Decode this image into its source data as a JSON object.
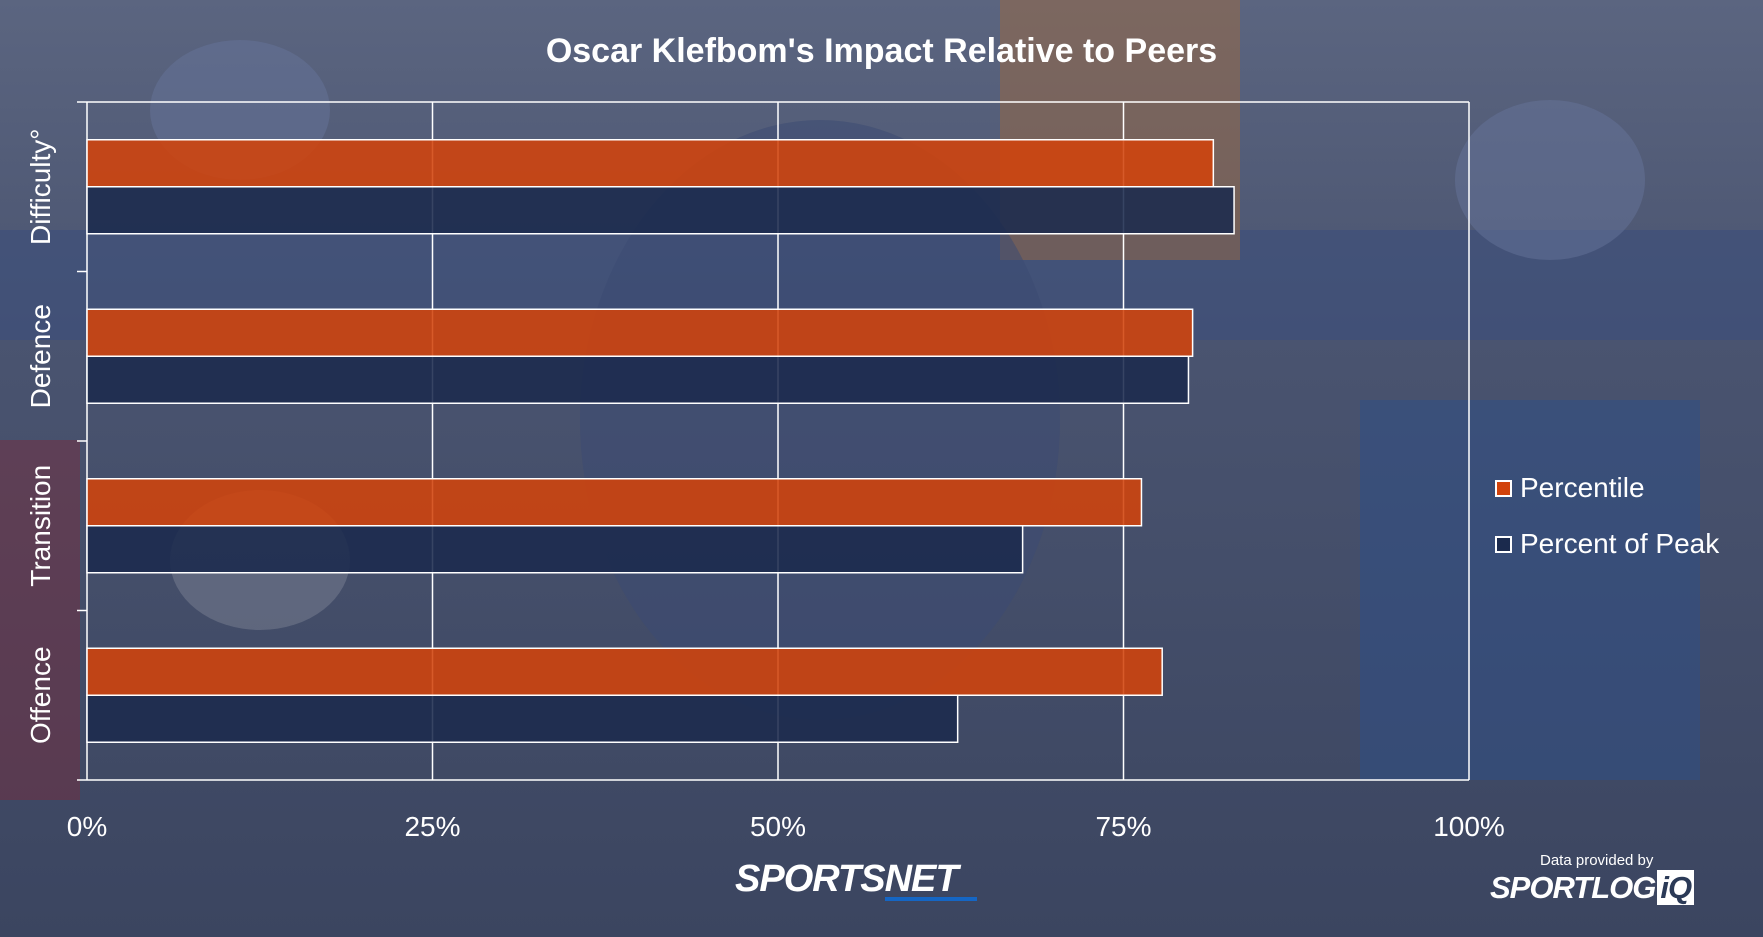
{
  "chart_data": {
    "type": "bar",
    "orientation": "horizontal",
    "title": "Oscar Klefbom's Impact Relative to Peers",
    "categories": [
      "Difficulty°",
      "Defence",
      "Transition",
      "Offence"
    ],
    "series": [
      {
        "name": "Percentile",
        "color": "#d2430b",
        "values": [
          81.5,
          80.0,
          76.3,
          77.8
        ]
      },
      {
        "name": "Percent of Peak",
        "color": "#1b2a4d",
        "values": [
          83.0,
          79.7,
          67.7,
          63.0
        ]
      }
    ],
    "xlim": [
      0,
      100
    ],
    "x_ticks": [
      "0%",
      "25%",
      "50%",
      "75%",
      "100%"
    ],
    "grid": true,
    "legend_position": "right"
  },
  "branding": {
    "logo_text": "SPORTSNET",
    "credit_text": "Data provided by",
    "credit_logo_text": "SPORTLOG",
    "credit_logo_suffix": "iQ"
  },
  "colors": {
    "percentile": "#d2430b",
    "percent_of_peak": "#1b2a4d"
  }
}
